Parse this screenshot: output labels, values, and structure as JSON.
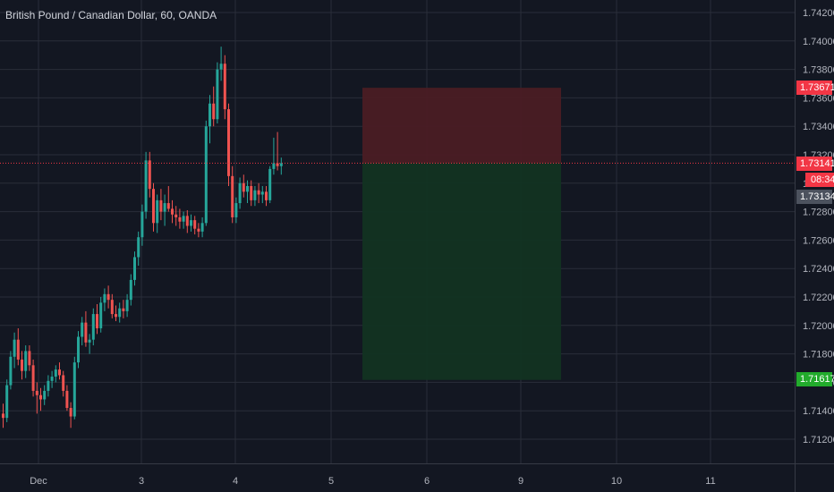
{
  "header": {
    "symbol_title": "British Pound / Canadian Dollar, 60, OANDA"
  },
  "colors": {
    "background": "#131722",
    "grid": "#2a2e39",
    "up_candle": "#26a69a",
    "down_candle": "#ef5350",
    "stop_zone": "#4a1c24",
    "target_zone": "#123322",
    "current_price_line": "#f23645"
  },
  "price_labels": {
    "stop_loss": "1.73671",
    "current": "1.73141",
    "countdown": "08:34",
    "bid": "1.73134",
    "take_profit": "1.71617"
  },
  "chart_data": {
    "type": "candlestick",
    "title": "British Pound / Canadian Dollar, 60, OANDA",
    "ylim": [
      1.7106,
      1.7429
    ],
    "y_ticks": [
      "1.74200",
      "1.74000",
      "1.73800",
      "1.73600",
      "1.73400",
      "1.73200",
      "1.73000",
      "1.72800",
      "1.72600",
      "1.72400",
      "1.72200",
      "1.72000",
      "1.71800",
      "1.71600",
      "1.71400",
      "1.71200"
    ],
    "x_ticks": [
      "Dec",
      "3",
      "4",
      "5",
      "6",
      "9",
      "10",
      "11"
    ],
    "grid": true,
    "position_tool": {
      "side": "short",
      "entry": 1.73141,
      "stop_loss": 1.73671,
      "take_profit": 1.71617,
      "current_price": 1.73141
    },
    "candles": [
      [
        1.7138,
        1.7145,
        1.7128,
        1.7135
      ],
      [
        1.7135,
        1.7162,
        1.7132,
        1.7158
      ],
      [
        1.7158,
        1.7182,
        1.7155,
        1.7178
      ],
      [
        1.7178,
        1.7195,
        1.717,
        1.719
      ],
      [
        1.719,
        1.7198,
        1.7172,
        1.7176
      ],
      [
        1.7176,
        1.7182,
        1.7162,
        1.7168
      ],
      [
        1.7168,
        1.7186,
        1.7163,
        1.7182
      ],
      [
        1.7182,
        1.7186,
        1.7168,
        1.7172
      ],
      [
        1.7172,
        1.7176,
        1.715,
        1.7154
      ],
      [
        1.7154,
        1.716,
        1.7138,
        1.7151
      ],
      [
        1.7151,
        1.7156,
        1.714,
        1.7148
      ],
      [
        1.7148,
        1.7158,
        1.7144,
        1.7154
      ],
      [
        1.7154,
        1.7165,
        1.715,
        1.7161
      ],
      [
        1.7161,
        1.7168,
        1.7156,
        1.7164
      ],
      [
        1.7164,
        1.7172,
        1.716,
        1.7169
      ],
      [
        1.7169,
        1.7174,
        1.7162,
        1.7165
      ],
      [
        1.7165,
        1.7168,
        1.715,
        1.7154
      ],
      [
        1.7154,
        1.7158,
        1.714,
        1.7142
      ],
      [
        1.7142,
        1.7146,
        1.7128,
        1.7136
      ],
      [
        1.7136,
        1.7178,
        1.7134,
        1.7174
      ],
      [
        1.7174,
        1.7196,
        1.717,
        1.7192
      ],
      [
        1.7192,
        1.7206,
        1.7186,
        1.7202
      ],
      [
        1.7202,
        1.721,
        1.7185,
        1.7188
      ],
      [
        1.7188,
        1.7194,
        1.718,
        1.719
      ],
      [
        1.719,
        1.7212,
        1.7186,
        1.7208
      ],
      [
        1.7208,
        1.7215,
        1.7194,
        1.7198
      ],
      [
        1.7198,
        1.722,
        1.7195,
        1.7216
      ],
      [
        1.7216,
        1.7226,
        1.721,
        1.7222
      ],
      [
        1.7222,
        1.7228,
        1.7212,
        1.7218
      ],
      [
        1.7218,
        1.7222,
        1.7205,
        1.7208
      ],
      [
        1.7208,
        1.7214,
        1.7203,
        1.7206
      ],
      [
        1.7206,
        1.7216,
        1.7202,
        1.7212
      ],
      [
        1.7212,
        1.7218,
        1.7205,
        1.721
      ],
      [
        1.721,
        1.7222,
        1.7206,
        1.7218
      ],
      [
        1.7218,
        1.7236,
        1.7214,
        1.7232
      ],
      [
        1.7232,
        1.7252,
        1.7228,
        1.7248
      ],
      [
        1.7248,
        1.7266,
        1.7242,
        1.7262
      ],
      [
        1.7262,
        1.7285,
        1.7256,
        1.728
      ],
      [
        1.728,
        1.7322,
        1.7275,
        1.7316
      ],
      [
        1.7316,
        1.7322,
        1.729,
        1.7296
      ],
      [
        1.7296,
        1.73,
        1.7266,
        1.7272
      ],
      [
        1.7272,
        1.7292,
        1.7265,
        1.7288
      ],
      [
        1.7288,
        1.7296,
        1.7274,
        1.728
      ],
      [
        1.728,
        1.7292,
        1.727,
        1.7286
      ],
      [
        1.7286,
        1.7298,
        1.728,
        1.7282
      ],
      [
        1.7282,
        1.7288,
        1.7272,
        1.7278
      ],
      [
        1.7278,
        1.7284,
        1.727,
        1.7276
      ],
      [
        1.7276,
        1.7282,
        1.7268,
        1.7273
      ],
      [
        1.7273,
        1.728,
        1.7268,
        1.7277
      ],
      [
        1.7277,
        1.7281,
        1.7265,
        1.727
      ],
      [
        1.727,
        1.7278,
        1.7266,
        1.7274
      ],
      [
        1.7274,
        1.7277,
        1.7264,
        1.7268
      ],
      [
        1.7268,
        1.7272,
        1.7262,
        1.7266
      ],
      [
        1.7266,
        1.7276,
        1.7262,
        1.7272
      ],
      [
        1.7272,
        1.7344,
        1.727,
        1.734
      ],
      [
        1.734,
        1.7362,
        1.7328,
        1.7356
      ],
      [
        1.7356,
        1.7368,
        1.734,
        1.7345
      ],
      [
        1.7345,
        1.7385,
        1.7342,
        1.738
      ],
      [
        1.738,
        1.7396,
        1.7372,
        1.7384
      ],
      [
        1.7384,
        1.739,
        1.7345,
        1.7352
      ],
      [
        1.7352,
        1.7356,
        1.7298,
        1.7305
      ],
      [
        1.7305,
        1.7312,
        1.7272,
        1.7276
      ],
      [
        1.7276,
        1.729,
        1.7272,
        1.7286
      ],
      [
        1.7286,
        1.7304,
        1.7282,
        1.73
      ],
      [
        1.73,
        1.7306,
        1.729,
        1.7294
      ],
      [
        1.7294,
        1.7302,
        1.7286,
        1.7298
      ],
      [
        1.7298,
        1.7302,
        1.7284,
        1.7288
      ],
      [
        1.7288,
        1.7298,
        1.7284,
        1.7295
      ],
      [
        1.7295,
        1.73,
        1.7286,
        1.7292
      ],
      [
        1.7292,
        1.7298,
        1.7286,
        1.7294
      ],
      [
        1.7294,
        1.7298,
        1.7284,
        1.7288
      ],
      [
        1.7288,
        1.7312,
        1.7286,
        1.731
      ],
      [
        1.731,
        1.7332,
        1.7306,
        1.7314
      ],
      [
        1.7314,
        1.7336,
        1.7309,
        1.7312
      ],
      [
        1.7312,
        1.7318,
        1.7306,
        1.7314
      ]
    ]
  }
}
